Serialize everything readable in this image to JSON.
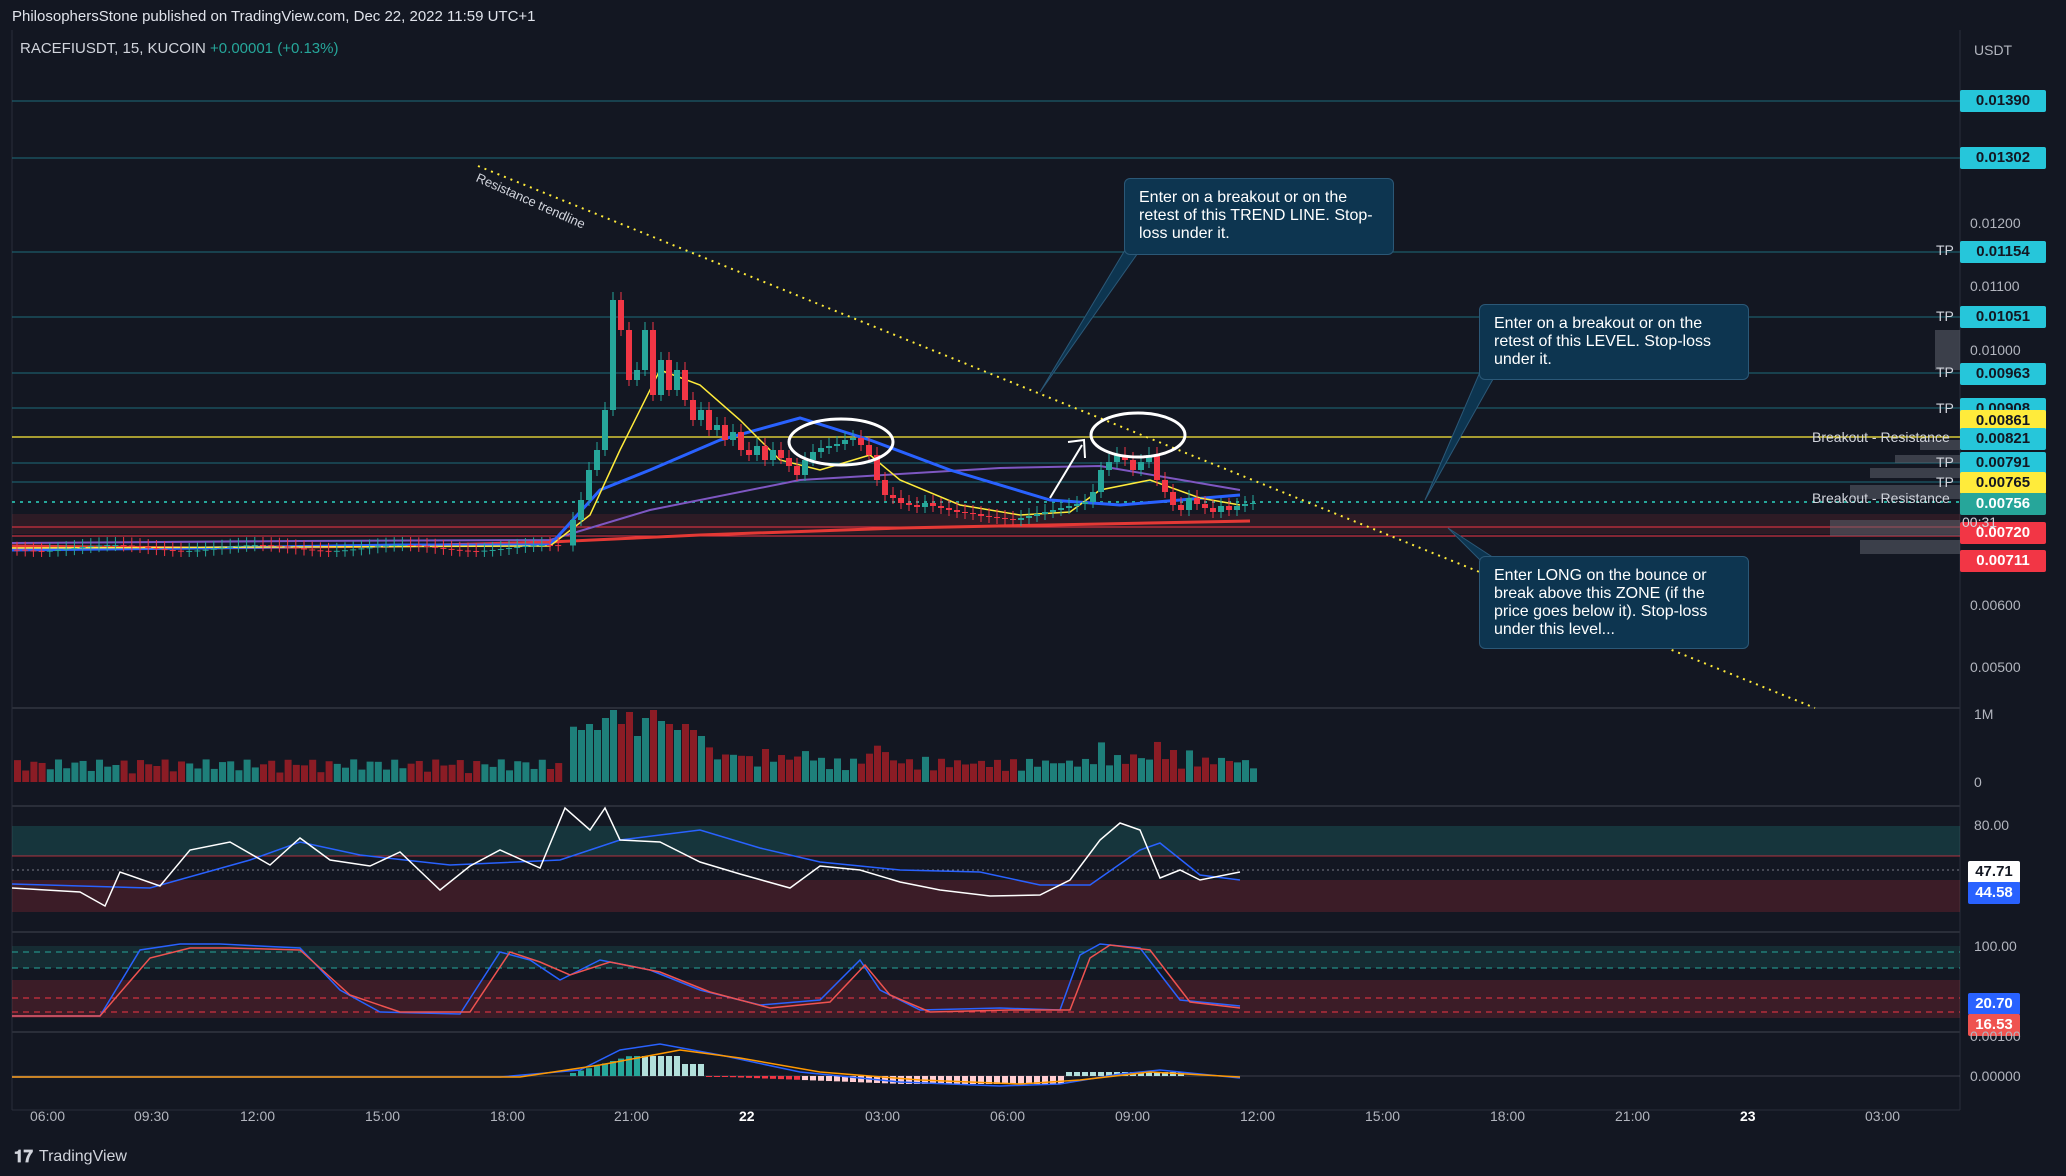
{
  "header": {
    "published": "PhilosophersStone published on TradingView.com, Dec 22, 2022 11:59 UTC+1",
    "symbol": "RACEFIUSDT, 15, KUCOIN",
    "change": "+0.00001 (+0.13%)",
    "currency": "USDT"
  },
  "price_axis": {
    "labels": [
      "0.01200",
      "0.01100",
      "0.01000",
      "0.00600",
      "0.00500"
    ],
    "tags": [
      {
        "value": "0.01390",
        "color": "#26c6da"
      },
      {
        "value": "0.01302",
        "color": "#26c6da"
      },
      {
        "value": "0.01154",
        "color": "#26c6da"
      },
      {
        "value": "0.01051",
        "color": "#26c6da"
      },
      {
        "value": "0.00963",
        "color": "#26c6da"
      },
      {
        "value": "0.00908",
        "color": "#26c6da"
      },
      {
        "value": "0.00861",
        "color": "#ffeb3b"
      },
      {
        "value": "0.00821",
        "color": "#26c6da"
      },
      {
        "value": "0.00791",
        "color": "#26c6da"
      },
      {
        "value": "0.00765",
        "color": "#ffeb3b"
      },
      {
        "value": "0.00756",
        "color": "#26a69a"
      },
      {
        "value": "0.00720",
        "color": "#f23645"
      },
      {
        "value": "0.00711",
        "color": "#f23645"
      }
    ],
    "countdown": "00:31",
    "tp_label": "TP"
  },
  "lines": {
    "breakout_label": "Breakout - Resistance",
    "trendline_label": "Resistance trendline"
  },
  "notes": {
    "trend": "Enter on a breakout or on the retest of this TREND LINE. Stop-loss under it.",
    "level": "Enter on a breakout or on the retest of this LEVEL. Stop-loss under it.",
    "zone": "Enter LONG on the bounce or break above this ZONE (if the price goes below it). Stop-loss under this level..."
  },
  "volume": {
    "label_top": "1M",
    "label_zero": "0"
  },
  "rsi": {
    "upper": "80.00",
    "value": "47.71",
    "signal": "44.58"
  },
  "stoch": {
    "upper": "100.00",
    "k": "20.70",
    "d": "16.53"
  },
  "macd": {
    "upper": "0.00100",
    "zero": "0.00000"
  },
  "time_axis": {
    "labels": [
      "06:00",
      "09:30",
      "12:00",
      "15:00",
      "18:00",
      "21:00",
      "22",
      "03:00",
      "06:00",
      "09:00",
      "12:00",
      "15:00",
      "18:00",
      "21:00",
      "23",
      "03:00"
    ]
  },
  "footer": {
    "brand": "TradingView"
  },
  "colors": {
    "up": "#26a69a",
    "down": "#f23645",
    "background": "#131722",
    "ema": "#2962ff",
    "ma": "#ffeb3b"
  }
}
